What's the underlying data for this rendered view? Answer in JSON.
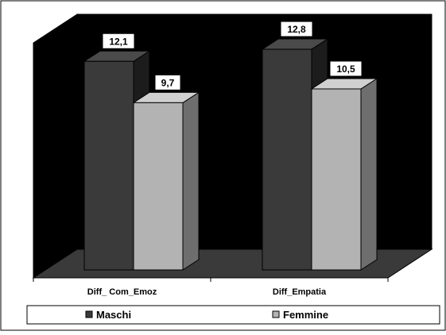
{
  "chart_data": {
    "type": "bar",
    "style": "3d-clustered-column",
    "categories": [
      "Diff_ Com_Emoz",
      "Diff_Empatia"
    ],
    "series": [
      {
        "name": "Maschi",
        "values": [
          12.1,
          12.8
        ],
        "labels": [
          "12,1",
          "12,8"
        ],
        "color": "#3a3a3a",
        "side_color": "#1c1c1c",
        "top_color": "#4a4a4a"
      },
      {
        "name": "Femmine",
        "values": [
          9.7,
          10.5
        ],
        "labels": [
          "9,7",
          "10,5"
        ],
        "color": "#b3b3b3",
        "side_color": "#6e6e6e",
        "top_color": "#d0d0d0"
      }
    ],
    "ylim": [
      0,
      14
    ],
    "grid": false,
    "legend": "bottom",
    "title": "",
    "xlabel": "",
    "ylabel": "",
    "wall_color": "#000000",
    "floor_color": "#3a3a3a"
  }
}
